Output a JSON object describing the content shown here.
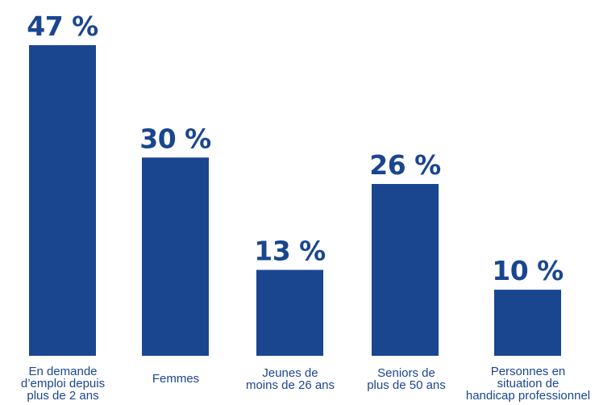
{
  "chart_data": {
    "type": "bar",
    "categories": [
      [
        "En demande",
        "d’emploi depuis",
        "plus de 2 ans"
      ],
      [
        "Femmes"
      ],
      [
        "Jeunes de",
        "moins de 26 ans"
      ],
      [
        "Seniors de",
        "plus de 50 ans"
      ],
      [
        "Personnes en",
        "situation de",
        "handicap professionnel"
      ]
    ],
    "values": [
      47,
      30,
      13,
      26,
      10
    ],
    "value_labels": [
      "47 %",
      "30 %",
      "13 %",
      "26 %",
      "10 %"
    ],
    "ylim": [
      0,
      47
    ],
    "grid": false,
    "legend": "none",
    "colors": {
      "bar": "#1a4690",
      "text": "#1a4690",
      "background": "#ffffff"
    }
  }
}
